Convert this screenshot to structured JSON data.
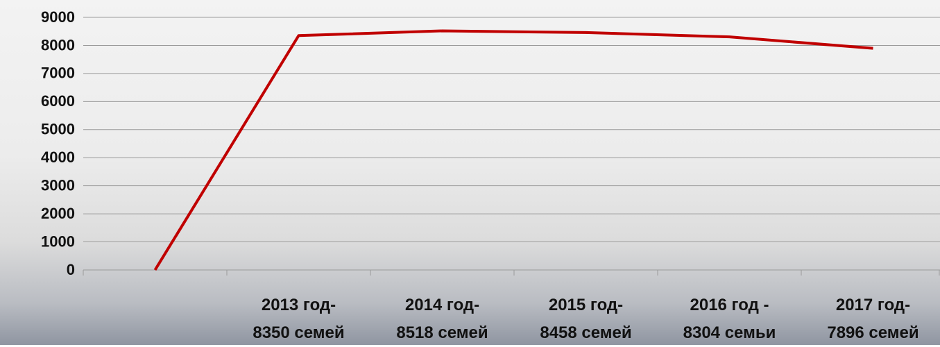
{
  "chart_data": {
    "type": "line",
    "categories": [
      null,
      "2013 год-\n8350 семей",
      "2014 год-\n8518 семей",
      "2015 год-\n8458 семей",
      "2016 год -\n8304 семьи",
      "2017 год-\n7896 семей"
    ],
    "values": [
      0,
      8350,
      8518,
      8458,
      8304,
      7896
    ],
    "color": "#c00000",
    "ylim": [
      0,
      9000
    ],
    "yticks": [
      0,
      1000,
      2000,
      3000,
      4000,
      5000,
      6000,
      7000,
      8000,
      9000
    ],
    "grid": true
  }
}
